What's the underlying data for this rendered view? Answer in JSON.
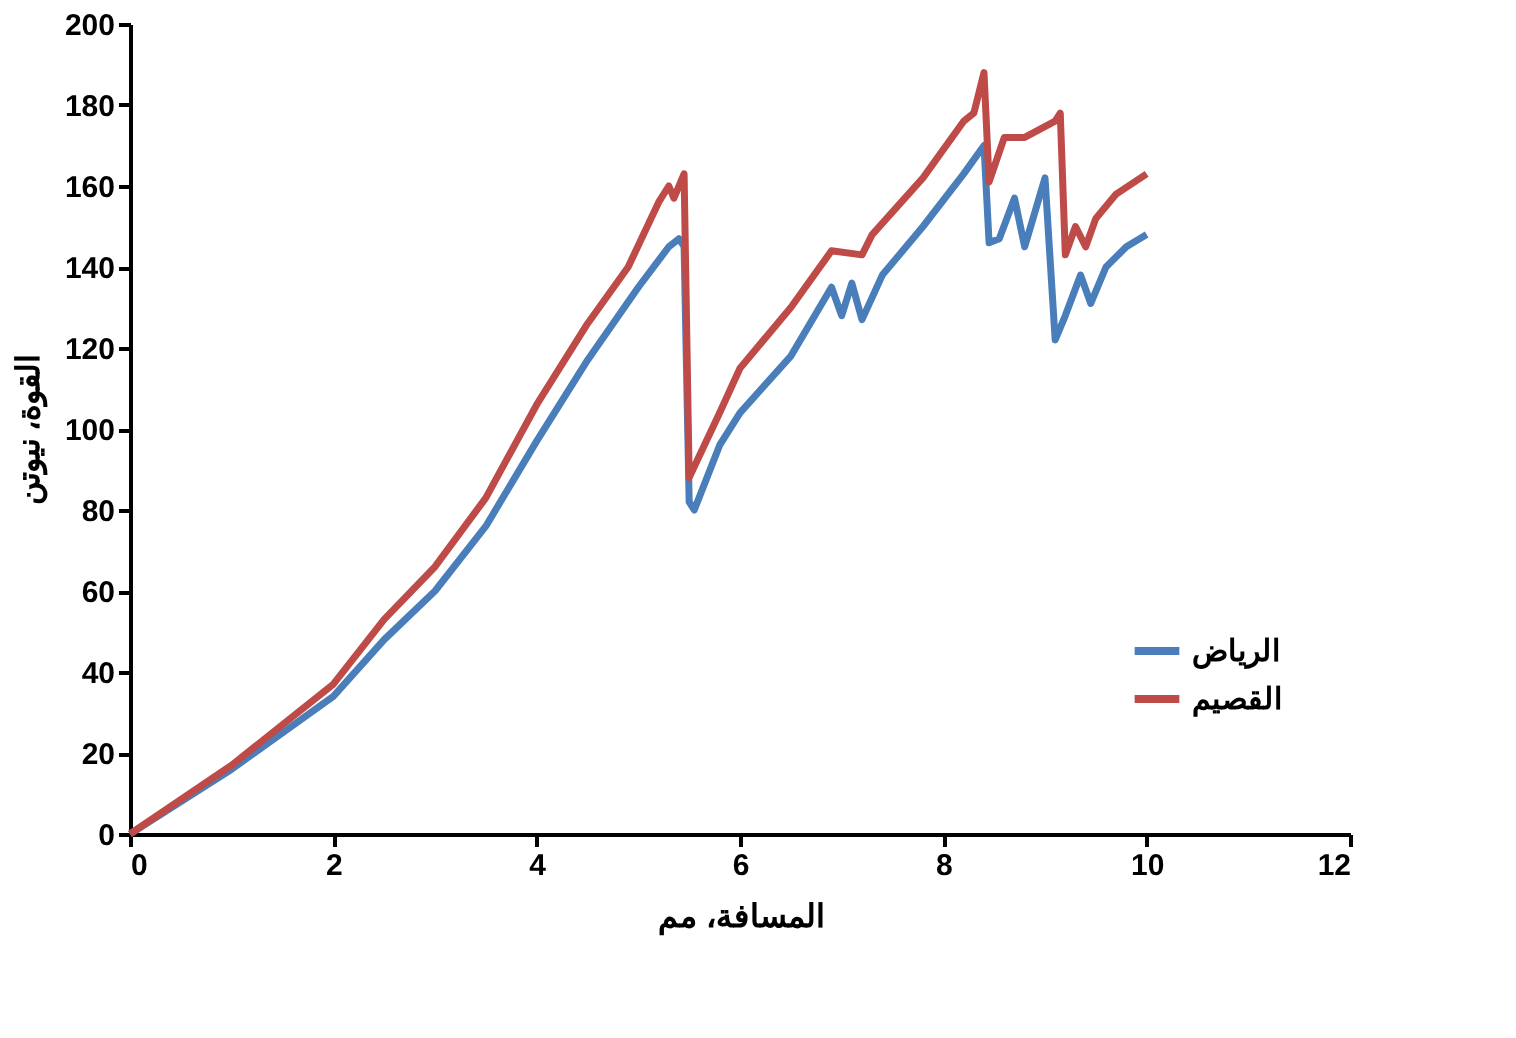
{
  "chart_data": {
    "type": "line",
    "xlabel": "المسافة، مم",
    "ylabel": "القوة، نيوتن",
    "xlim": [
      0,
      12
    ],
    "xticks": [
      0,
      2,
      4,
      6,
      8,
      10,
      12
    ],
    "ylim": [
      0,
      200
    ],
    "yticks": [
      0,
      20,
      40,
      60,
      80,
      100,
      120,
      140,
      160,
      180,
      200
    ],
    "grid": false,
    "legend": "right",
    "marker": "none",
    "line_style": "solid",
    "series": [
      {
        "name": "الرياض",
        "color": "#4a7ebb",
        "x": [
          0,
          1,
          2,
          2.5,
          3,
          3.5,
          4,
          4.5,
          5,
          5.3,
          5.4,
          5.45,
          5.5,
          5.55,
          5.8,
          6,
          6.5,
          6.9,
          7.0,
          7.1,
          7.2,
          7.4,
          7.8,
          8.2,
          8.4,
          8.45,
          8.55,
          8.7,
          8.8,
          9.0,
          9.1,
          9.2,
          9.35,
          9.45,
          9.6,
          9.8,
          10
        ],
        "values": [
          0,
          16,
          34,
          48,
          60,
          76,
          97,
          117,
          135,
          145,
          147,
          145,
          82,
          80,
          96,
          104,
          118,
          135,
          128,
          136,
          127,
          138,
          150,
          163,
          170,
          146,
          147,
          157,
          145,
          162,
          122,
          128,
          138,
          131,
          140,
          145,
          148
        ]
      },
      {
        "name": "القصيم",
        "color": "#be4b48",
        "x": [
          0,
          1,
          2,
          2.5,
          3,
          3.5,
          4,
          4.5,
          4.9,
          5.2,
          5.3,
          5.35,
          5.45,
          5.5,
          5.8,
          6,
          6.5,
          6.9,
          7.2,
          7.3,
          7.8,
          8.2,
          8.3,
          8.4,
          8.45,
          8.6,
          8.8,
          9.1,
          9.15,
          9.2,
          9.3,
          9.4,
          9.5,
          9.7,
          10
        ],
        "values": [
          0,
          17,
          37,
          53,
          66,
          83,
          106,
          126,
          140,
          156,
          160,
          157,
          163,
          88,
          104,
          115,
          130,
          144,
          143,
          148,
          162,
          176,
          178,
          188,
          161,
          172,
          172,
          176,
          178,
          143,
          150,
          145,
          152,
          158,
          163
        ]
      }
    ]
  }
}
